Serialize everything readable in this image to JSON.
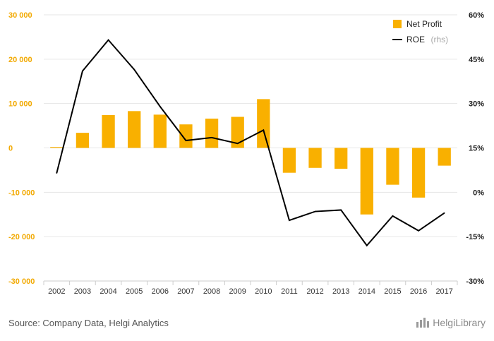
{
  "chart_data": {
    "type": "bar",
    "categories": [
      "2002",
      "2003",
      "2004",
      "2005",
      "2006",
      "2007",
      "2008",
      "2009",
      "2010",
      "2011",
      "2012",
      "2013",
      "2014",
      "2015",
      "2016",
      "2017"
    ],
    "series": [
      {
        "name": "Net Profit",
        "type": "bar",
        "axis": "left",
        "color": "#f9b000",
        "values": [
          200,
          3400,
          7400,
          8300,
          7500,
          5300,
          6600,
          7000,
          11000,
          -5600,
          -4500,
          -4700,
          -15000,
          -8300,
          -11200,
          -4000
        ]
      },
      {
        "name": "ROE",
        "name_suffix": "(rhs)",
        "type": "line",
        "axis": "right",
        "color": "#000000",
        "values": [
          6.5,
          41,
          51.5,
          41.5,
          29,
          17.5,
          18.5,
          16.5,
          21,
          -9.5,
          -6.5,
          -6,
          -18,
          -8,
          -13,
          -7
        ]
      }
    ],
    "y_left": {
      "ticks": [
        "30 000",
        "20 000",
        "10 000",
        "0",
        "-10 000",
        "-20 000",
        "-30 000"
      ],
      "ylim": [
        -30000,
        30000
      ]
    },
    "y_right": {
      "ticks": [
        "60%",
        "45%",
        "30%",
        "15%",
        "0%",
        "-15%",
        "-30%"
      ],
      "ylim": [
        -30,
        60
      ]
    },
    "grid": true,
    "legend_position": "top-right",
    "colors": {
      "bar": "#f9b000",
      "line": "#000000",
      "left_axis_text": "#f2a900"
    }
  },
  "footer": {
    "source": "Source: Company Data, Helgi Analytics",
    "brand": "HelgiLibrary",
    "brand_icon": "helgi-logo-icon"
  }
}
